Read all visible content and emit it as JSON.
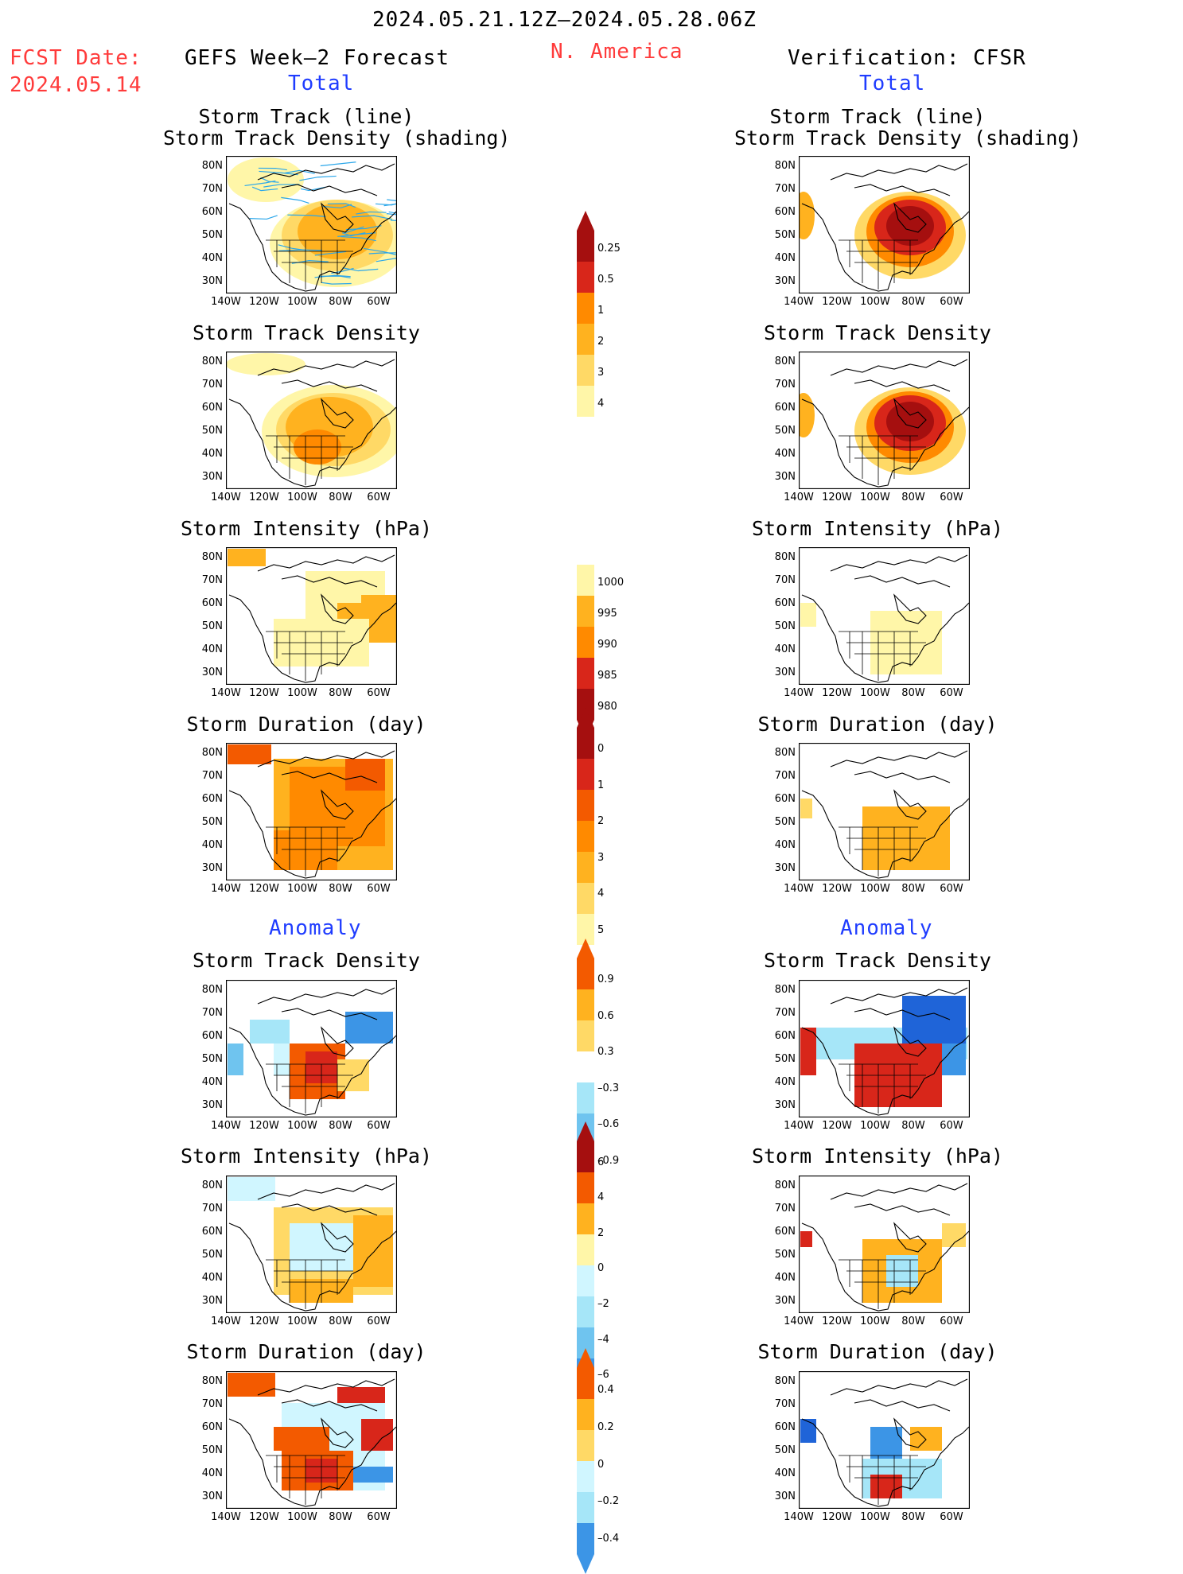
{
  "header": {
    "date_range": "2024.05.21.12Z–2024.05.28.06Z",
    "fcst_label": "FCST Date:",
    "fcst_date": "2024.05.14",
    "forecast_title": "GEFS Week–2 Forecast",
    "region": "N. America",
    "verification_title": "Verification: CFSR"
  },
  "sections": {
    "total": "Total",
    "anomaly": "Anomaly"
  },
  "panel_titles": {
    "track_line_1": "Storm Track (line)",
    "track_line_2": "Storm Track Density (shading)",
    "density": "Storm Track Density",
    "intensity": "Storm Intensity (hPa)",
    "duration": "Storm Duration (day)"
  },
  "axes": {
    "lat_ticks": [
      "80N",
      "70N",
      "60N",
      "50N",
      "40N",
      "30N"
    ],
    "lon_ticks": [
      "140W",
      "120W",
      "100W",
      "80W",
      "60W"
    ]
  },
  "colorbars": {
    "track_density_total": [
      "0.25",
      "0.5",
      "1",
      "2",
      "3",
      "4"
    ],
    "intensity_total": [
      "1000",
      "995",
      "990",
      "985",
      "980"
    ],
    "duration_total": [
      "0",
      "1",
      "2",
      "3",
      "4",
      "5"
    ],
    "density_anomaly": [
      "0.9",
      "0.6",
      "0.3",
      "–0.3",
      "–0.6",
      "–0.9"
    ],
    "intensity_anomaly": [
      "6",
      "4",
      "2",
      "0",
      "–2",
      "–4",
      "–6"
    ],
    "duration_anomaly": [
      "0.4",
      "0.2",
      "0",
      "–0.2",
      "–0.4"
    ]
  },
  "colors": {
    "warm": [
      "#fff6a8",
      "#ffd966",
      "#ffb21f",
      "#ff8a00",
      "#f35a00",
      "#d8261a",
      "#a50f0f"
    ],
    "cool": [
      "#d0f6ff",
      "#a6e6f8",
      "#6fc4ef",
      "#3c95e6",
      "#1f64d8"
    ],
    "track_line": "#2ba7ea",
    "title_red": "#ff3b3b",
    "title_blue": "#1f3cff"
  }
}
